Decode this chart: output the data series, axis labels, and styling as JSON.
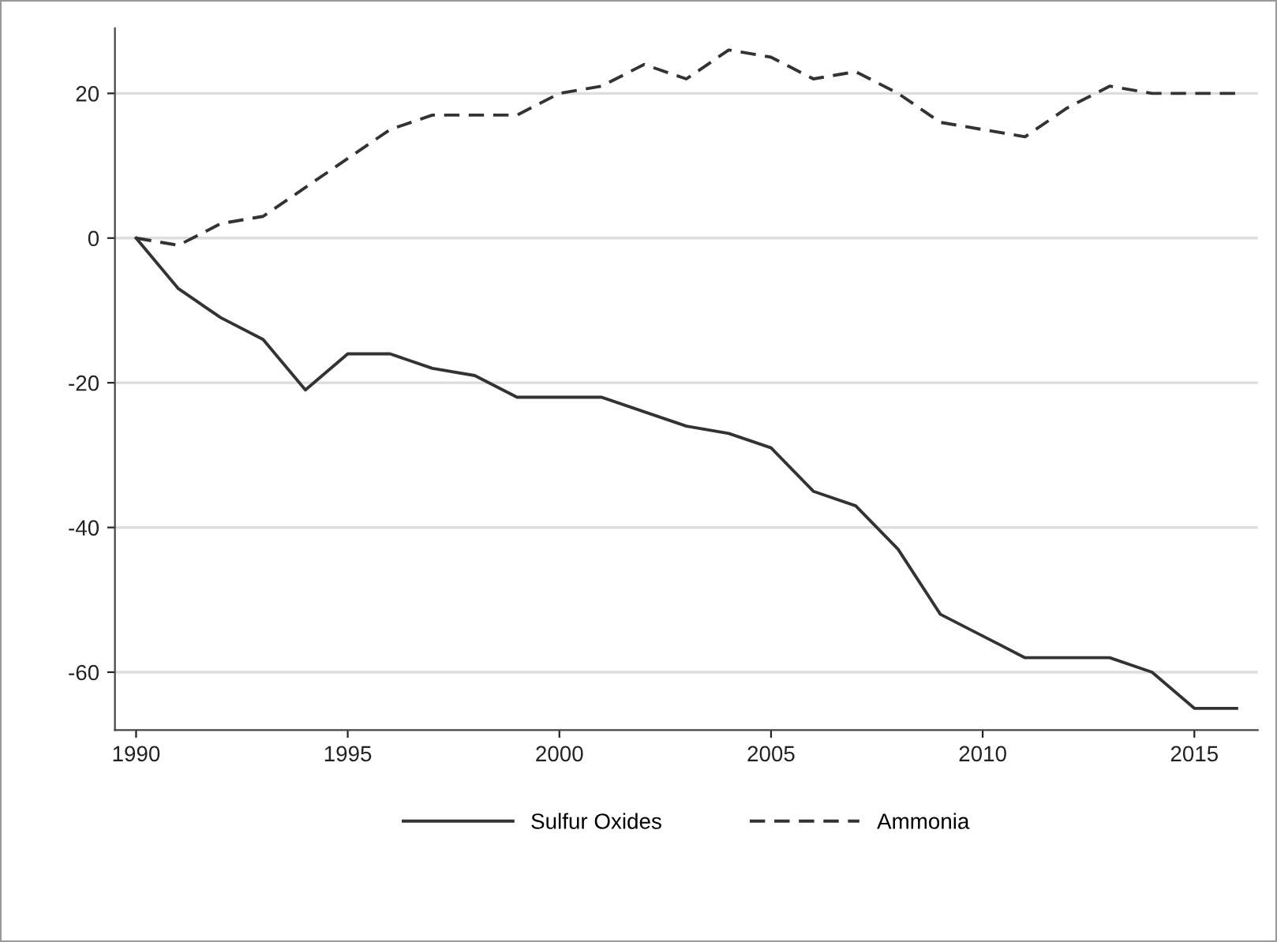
{
  "chart_data": {
    "type": "line",
    "x": [
      1990,
      1991,
      1992,
      1993,
      1994,
      1995,
      1996,
      1997,
      1998,
      1999,
      2000,
      2001,
      2002,
      2003,
      2004,
      2005,
      2006,
      2007,
      2008,
      2009,
      2010,
      2011,
      2012,
      2013,
      2014,
      2015,
      2016
    ],
    "series": [
      {
        "name": "Sulfur Oxides",
        "color": "#333333",
        "line_style": "solid",
        "values": [
          0,
          -7,
          -11,
          -14,
          -21,
          -16,
          -16,
          -18,
          -19,
          -22,
          -22,
          -22,
          -24,
          -26,
          -27,
          -29,
          -35,
          -37,
          -43,
          -52,
          -55,
          -58,
          -58,
          -58,
          -60,
          -65,
          -65
        ]
      },
      {
        "name": "Ammonia",
        "color": "#333333",
        "line_style": "dashed",
        "values": [
          0,
          -1,
          2,
          3,
          7,
          11,
          15,
          17,
          17,
          17,
          20,
          21,
          24,
          22,
          26,
          25,
          22,
          23,
          20,
          16,
          15,
          14,
          18,
          21,
          20,
          20,
          20
        ]
      }
    ],
    "xlim": [
      1989.5,
      2016.5
    ],
    "xticks": [
      1990,
      1995,
      2000,
      2005,
      2010,
      2015
    ],
    "ylim": [
      -68,
      29
    ],
    "yticks": [
      -60,
      -40,
      -20,
      0,
      20
    ],
    "grid": "y",
    "legend": "bottom",
    "marker": "none"
  }
}
